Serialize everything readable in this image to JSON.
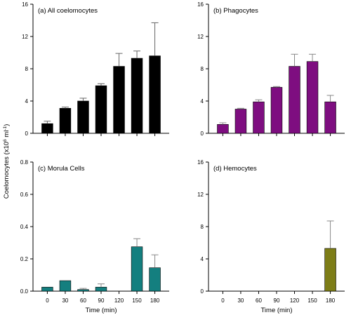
{
  "y_axis_title_main": "Coelomocytes (x10",
  "y_axis_title_exp": "6",
  "y_axis_title_mid": " ml",
  "y_axis_title_exp2": "-1",
  "y_axis_title_end": ")",
  "x_axis_title": "Time (min)",
  "chart_data": [
    {
      "type": "bar",
      "title": "(a) All coelomocytes",
      "categories": [
        "0",
        "30",
        "60",
        "90",
        "120",
        "150",
        "180"
      ],
      "values": [
        1.2,
        3.1,
        4.0,
        5.9,
        8.3,
        9.3,
        9.6
      ],
      "errors": [
        0.3,
        0.15,
        0.35,
        0.25,
        1.6,
        0.9,
        4.1
      ],
      "ylim": [
        0,
        16
      ],
      "yticks": [
        0,
        4,
        8,
        12,
        16
      ],
      "xticks_shown": false,
      "color": "#000000"
    },
    {
      "type": "bar",
      "title": "(b) Phagocytes",
      "categories": [
        "0",
        "30",
        "60",
        "90",
        "120",
        "150",
        "180"
      ],
      "values": [
        1.1,
        3.0,
        3.9,
        5.7,
        8.3,
        8.9,
        3.9
      ],
      "errors": [
        0.2,
        0.1,
        0.25,
        0.1,
        1.5,
        0.9,
        0.8
      ],
      "ylim": [
        0,
        16
      ],
      "yticks": [
        0,
        4,
        8,
        12,
        16
      ],
      "xticks_shown": false,
      "color": "#7e0e80"
    },
    {
      "type": "bar",
      "title": "(c) Morula Cells",
      "categories": [
        "0",
        "30",
        "60",
        "90",
        "120",
        "150",
        "180"
      ],
      "values": [
        0.025,
        0.065,
        0.01,
        0.025,
        0.0,
        0.275,
        0.145
      ],
      "errors": [
        0.0,
        0.0,
        0.007,
        0.02,
        0.0,
        0.05,
        0.08
      ],
      "ylim": [
        0,
        0.8
      ],
      "yticks": [
        0.0,
        0.2,
        0.4,
        0.6,
        0.8
      ],
      "ytick_labels": [
        "0.0",
        "0.2",
        "0.4",
        "0.6",
        "0.8"
      ],
      "xticks_shown": true,
      "color": "#147f7f"
    },
    {
      "type": "bar",
      "title": "(d) Hemocytes",
      "categories": [
        "0",
        "30",
        "60",
        "90",
        "120",
        "150",
        "180"
      ],
      "values": [
        0,
        0,
        0,
        0,
        0,
        0,
        5.3
      ],
      "errors": [
        0,
        0,
        0,
        0,
        0,
        0,
        3.4
      ],
      "ylim": [
        0,
        16
      ],
      "yticks": [
        0,
        4,
        8,
        12,
        16
      ],
      "xticks_shown": true,
      "color": "#7d7d17"
    }
  ]
}
